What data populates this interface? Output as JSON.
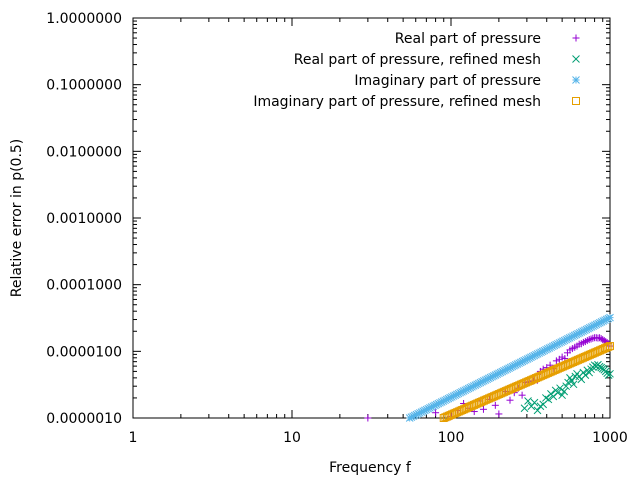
{
  "chart_data": {
    "type": "scatter",
    "xlabel": "Frequency f",
    "ylabel": "Relative error in p(0.5)",
    "xscale": "log",
    "yscale": "log",
    "xlim": [
      1,
      1000
    ],
    "ylim": [
      1e-06,
      1
    ],
    "grid": false,
    "legend_position": "top-right",
    "x_ticks": [
      {
        "value": 1,
        "label": "1"
      },
      {
        "value": 10,
        "label": "10"
      },
      {
        "value": 100,
        "label": "100"
      },
      {
        "value": 1000,
        "label": "1000"
      }
    ],
    "y_ticks": [
      {
        "value": 1e-06,
        "label": "0.0000010"
      },
      {
        "value": 1e-05,
        "label": "0.0000100"
      },
      {
        "value": 0.0001,
        "label": "0.0001000"
      },
      {
        "value": 0.001,
        "label": "0.0010000"
      },
      {
        "value": 0.01,
        "label": "0.0100000"
      },
      {
        "value": 0.1,
        "label": "0.1000000"
      },
      {
        "value": 1,
        "label": "1.0000000"
      }
    ],
    "series": [
      {
        "name": "Real part of pressure",
        "marker": "plus",
        "color": "#9400d3",
        "points": [
          [
            30,
            1e-06
          ],
          [
            80,
            1.2e-06
          ],
          [
            100,
            1.05e-06
          ],
          [
            110,
            1.3e-06
          ],
          [
            120,
            1.65e-06
          ],
          [
            130,
            1.4e-06
          ],
          [
            140,
            1.25e-06
          ],
          [
            150,
            1.8e-06
          ],
          [
            160,
            1.35e-06
          ],
          [
            175,
            1.9e-06
          ],
          [
            190,
            1.55e-06
          ],
          [
            200,
            1.15e-06
          ],
          [
            220,
            2.5e-06
          ],
          [
            235,
            1.85e-06
          ],
          [
            250,
            2.4e-06
          ],
          [
            265,
            2.8e-06
          ],
          [
            280,
            2.2e-06
          ],
          [
            295,
            3.4e-06
          ],
          [
            310,
            3.5e-06
          ],
          [
            330,
            3.6e-06
          ],
          [
            350,
            3.7e-06
          ],
          [
            365,
            5e-06
          ],
          [
            380,
            5.4e-06
          ],
          [
            400,
            5.7e-06
          ],
          [
            420,
            6.2e-06
          ],
          [
            440,
            5.5e-06
          ],
          [
            460,
            7.2e-06
          ],
          [
            480,
            7.6e-06
          ],
          [
            500,
            8.2e-06
          ],
          [
            520,
            7.8e-06
          ],
          [
            540,
            9.5e-06
          ],
          [
            560,
            1.05e-05
          ],
          [
            580,
            1.1e-05
          ],
          [
            600,
            1.15e-05
          ],
          [
            620,
            1.2e-05
          ],
          [
            640,
            1.28e-05
          ],
          [
            660,
            1.3e-05
          ],
          [
            680,
            1.36e-05
          ],
          [
            700,
            1.4e-05
          ],
          [
            720,
            1.45e-05
          ],
          [
            740,
            1.5e-05
          ],
          [
            760,
            1.53e-05
          ],
          [
            780,
            1.57e-05
          ],
          [
            800,
            1.6e-05
          ],
          [
            820,
            1.6e-05
          ],
          [
            840,
            1.58e-05
          ],
          [
            860,
            1.6e-05
          ],
          [
            880,
            1.55e-05
          ],
          [
            900,
            1.5e-05
          ],
          [
            920,
            1.45e-05
          ],
          [
            940,
            1.4e-05
          ],
          [
            960,
            1.35e-05
          ],
          [
            980,
            1.3e-05
          ],
          [
            1000,
            1.2e-05
          ]
        ]
      },
      {
        "name": "Real part of pressure, refined mesh",
        "marker": "cross",
        "color": "#009e73",
        "points": [
          [
            290,
            1.4e-06
          ],
          [
            305,
            1.8e-06
          ],
          [
            320,
            1.5e-06
          ],
          [
            335,
            1.7e-06
          ],
          [
            350,
            1.3e-06
          ],
          [
            365,
            1.5e-06
          ],
          [
            380,
            1.6e-06
          ],
          [
            395,
            2e-06
          ],
          [
            410,
            1.9e-06
          ],
          [
            425,
            2.3e-06
          ],
          [
            440,
            2.1e-06
          ],
          [
            455,
            2.6e-06
          ],
          [
            470,
            2.4e-06
          ],
          [
            485,
            2.8e-06
          ],
          [
            500,
            2.2e-06
          ],
          [
            515,
            2.5e-06
          ],
          [
            530,
            3e-06
          ],
          [
            545,
            3.4e-06
          ],
          [
            560,
            4e-06
          ],
          [
            575,
            3.6e-06
          ],
          [
            590,
            3.2e-06
          ],
          [
            605,
            4.2e-06
          ],
          [
            620,
            4.6e-06
          ],
          [
            640,
            4.2e-06
          ],
          [
            660,
            3.8e-06
          ],
          [
            680,
            4.8e-06
          ],
          [
            700,
            4.4e-06
          ],
          [
            720,
            5.2e-06
          ],
          [
            740,
            4.8e-06
          ],
          [
            760,
            5.4e-06
          ],
          [
            780,
            5.8e-06
          ],
          [
            800,
            6.2e-06
          ],
          [
            820,
            6e-06
          ],
          [
            840,
            6.3e-06
          ],
          [
            860,
            5.9e-06
          ],
          [
            880,
            5.7e-06
          ],
          [
            900,
            5.5e-06
          ],
          [
            920,
            5.3e-06
          ],
          [
            940,
            5e-06
          ],
          [
            960,
            4.7e-06
          ],
          [
            980,
            4.4e-06
          ],
          [
            1000,
            4.6e-06
          ]
        ]
      },
      {
        "name": "Imaginary part of pressure",
        "marker": "star",
        "color": "#56b4e9",
        "range": [
          55,
          1000
        ],
        "count": 120,
        "y_at_range_start": 1e-06,
        "y_at_range_end": 3.2e-05
      },
      {
        "name": "Imaginary part of pressure, refined mesh",
        "marker": "square",
        "color": "#e69f00",
        "range": [
          90,
          1000
        ],
        "count": 100,
        "y_at_range_start": 1e-06,
        "y_at_range_end": 1.2e-05
      }
    ]
  }
}
